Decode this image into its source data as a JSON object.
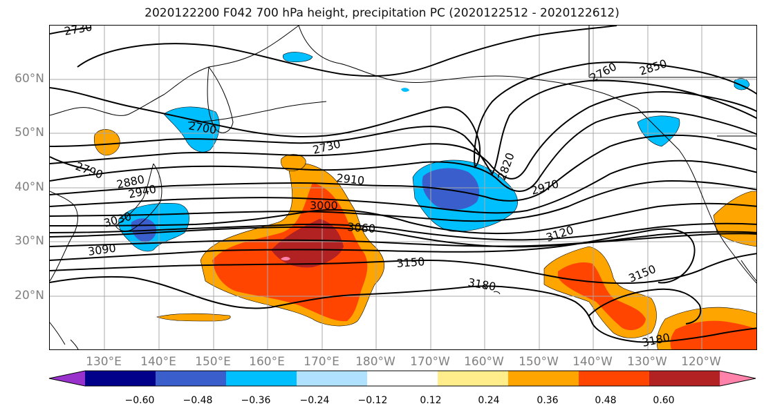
{
  "title": "2020122200 F042 700 hPa height, precipitation PC (2020122512 - 2020122612)",
  "lat_labels": [
    "60°N",
    "50°N",
    "40°N",
    "30°N",
    "20°N"
  ],
  "lon_labels": [
    "130°E",
    "140°E",
    "150°E",
    "160°E",
    "170°E",
    "180°W",
    "170°W",
    "160°W",
    "150°W",
    "140°W",
    "130°W",
    "120°W"
  ],
  "contour_labels": [
    "2730",
    "2700",
    "2730",
    "2760",
    "2850",
    "2790",
    "2880",
    "2940",
    "2910",
    "3000",
    "3030",
    "3060",
    "3090",
    "2820",
    "2970",
    "3120",
    "3150",
    "3180",
    "3150",
    "3180"
  ],
  "colorbar": {
    "ticks": [
      "−0.60",
      "−0.48",
      "−0.36",
      "−0.24",
      "−0.12",
      "0.12",
      "0.24",
      "0.36",
      "0.48",
      "0.60"
    ],
    "colors": [
      "#9932cc",
      "#00008b",
      "#3a5fcd",
      "#00bfff",
      "#b0e2ff",
      "#ffffff",
      "#ffec8b",
      "#ffa500",
      "#ff4500",
      "#b22222",
      "#ff82ab"
    ]
  }
}
